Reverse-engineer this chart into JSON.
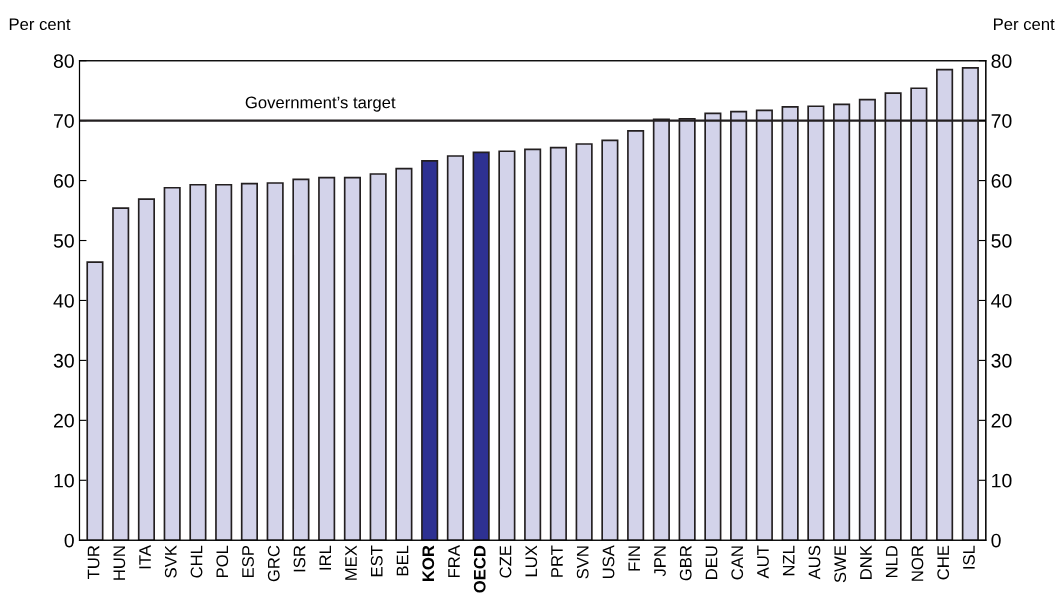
{
  "chart_data": {
    "type": "bar",
    "categories": [
      "TUR",
      "HUN",
      "ITA",
      "SVK",
      "CHL",
      "POL",
      "ESP",
      "GRC",
      "ISR",
      "IRL",
      "MEX",
      "EST",
      "BEL",
      "KOR",
      "FRA",
      "OECD",
      "CZE",
      "LUX",
      "PRT",
      "SVN",
      "USA",
      "FIN",
      "JPN",
      "GBR",
      "DEU",
      "CAN",
      "AUT",
      "NZL",
      "AUS",
      "SWE",
      "DNK",
      "NLD",
      "NOR",
      "CHE",
      "ISL"
    ],
    "values": [
      46.4,
      55.4,
      56.9,
      58.8,
      59.3,
      59.3,
      59.5,
      59.6,
      60.2,
      60.5,
      60.5,
      61.1,
      62.0,
      63.3,
      64.1,
      64.7,
      64.9,
      65.2,
      65.5,
      66.1,
      66.7,
      68.3,
      70.2,
      70.3,
      71.2,
      71.5,
      71.7,
      72.3,
      72.4,
      72.7,
      73.5,
      74.6,
      75.4,
      78.5,
      78.8
    ],
    "colors": [
      "#d3d3ea",
      "#d3d3ea",
      "#d3d3ea",
      "#d3d3ea",
      "#d3d3ea",
      "#d3d3ea",
      "#d3d3ea",
      "#d3d3ea",
      "#d3d3ea",
      "#d3d3ea",
      "#d3d3ea",
      "#d3d3ea",
      "#d3d3ea",
      "#2e3192",
      "#d3d3ea",
      "#2e3192",
      "#d3d3ea",
      "#d3d3ea",
      "#d3d3ea",
      "#d3d3ea",
      "#d3d3ea",
      "#d3d3ea",
      "#d3d3ea",
      "#d3d3ea",
      "#d3d3ea",
      "#d3d3ea",
      "#d3d3ea",
      "#d3d3ea",
      "#d3d3ea",
      "#d3d3ea",
      "#d3d3ea",
      "#d3d3ea",
      "#d3d3ea",
      "#d3d3ea",
      "#d3d3ea"
    ],
    "ylabel": "Per cent",
    "y2label": "Per cent",
    "ylim": [
      0,
      80
    ],
    "yticks": [
      0,
      10,
      20,
      30,
      40,
      50,
      60,
      70,
      80
    ],
    "y2lim": [
      0,
      80
    ],
    "y2ticks": [
      0,
      10,
      20,
      30,
      40,
      50,
      60,
      70,
      80
    ],
    "ref_lines": [
      {
        "axis": "y",
        "value": 70,
        "label": "Government’s target",
        "color": "#231f20",
        "line_style": "solid"
      }
    ],
    "grid": false,
    "legend": false
  }
}
